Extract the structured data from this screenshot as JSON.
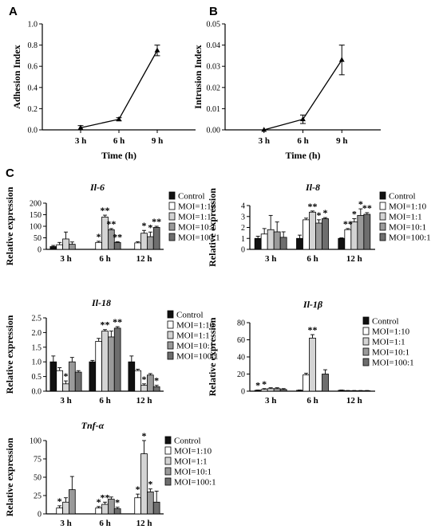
{
  "panel_letters": [
    "A",
    "B",
    "C"
  ],
  "chart_data": [
    {
      "type": "line",
      "panel": "A",
      "x": [
        "3 h",
        "6 h",
        "9 h"
      ],
      "values": [
        0.02,
        0.1,
        0.75
      ],
      "errors": [
        0.02,
        0.015,
        0.05
      ],
      "xlabel": "Time (h)",
      "ylabel": "Adhesion Index",
      "ylim": [
        0,
        1.0
      ],
      "yticks": [
        "0.0",
        "0.2",
        "0.4",
        "0.6",
        "0.8",
        "1.0"
      ]
    },
    {
      "type": "line",
      "panel": "B",
      "x": [
        "3 h",
        "6 h",
        "9 h"
      ],
      "values": [
        0.0,
        0.005,
        0.033
      ],
      "errors": [
        0.0,
        0.002,
        0.007
      ],
      "xlabel": "Time (h)",
      "ylabel": "Intrusion Index",
      "ylim": [
        0,
        0.05
      ],
      "yticks": [
        "0.00",
        "0.01",
        "0.02",
        "0.03",
        "0.04",
        "0.05"
      ]
    },
    {
      "type": "bar",
      "title": "Il-6",
      "categories": [
        "3 h",
        "6 h",
        "12 h"
      ],
      "ylabel": "Relative expression",
      "ylim": [
        0,
        200
      ],
      "yticks": [
        "0",
        "50",
        "100",
        "150",
        "200"
      ],
      "series": [
        {
          "name": "Control",
          "values": [
            12,
            0,
            0
          ],
          "errors": [
            5,
            0,
            0
          ]
        },
        {
          "name": "MOI=1:10",
          "values": [
            20,
            30,
            28
          ],
          "errors": [
            10,
            5,
            5
          ]
        },
        {
          "name": "MOI=1:1",
          "values": [
            45,
            140,
            70
          ],
          "errors": [
            30,
            8,
            12
          ]
        },
        {
          "name": "MOI=10:1",
          "values": [
            22,
            85,
            55
          ],
          "errors": [
            10,
            5,
            20
          ]
        },
        {
          "name": "MOI=100:1",
          "values": [
            0,
            30,
            95
          ],
          "errors": [
            0,
            3,
            5
          ]
        }
      ],
      "significance": [
        {
          "series": 1,
          "category": 1,
          "label": "*"
        },
        {
          "series": 2,
          "category": 1,
          "label": "**"
        },
        {
          "series": 3,
          "category": 1,
          "label": "**"
        },
        {
          "series": 4,
          "category": 1,
          "label": "**"
        },
        {
          "series": 2,
          "category": 2,
          "label": "*"
        },
        {
          "series": 3,
          "category": 2,
          "label": "*"
        },
        {
          "series": 4,
          "category": 2,
          "label": "**"
        }
      ]
    },
    {
      "type": "bar",
      "title": "Il-8",
      "categories": [
        "3 h",
        "6 h",
        "12 h"
      ],
      "ylabel": "Relative expression",
      "ylim": [
        0,
        4
      ],
      "yticks": [
        "0",
        "1",
        "2",
        "3",
        "4"
      ],
      "series": [
        {
          "name": "Control",
          "values": [
            1.0,
            1.0,
            1.0
          ],
          "errors": [
            0.2,
            0.3,
            0.05
          ]
        },
        {
          "name": "MOI=1:10",
          "values": [
            1.4,
            2.7,
            1.8
          ],
          "errors": [
            0.5,
            0.15,
            0.1
          ]
        },
        {
          "name": "MOI=1:1",
          "values": [
            1.8,
            3.4,
            2.5
          ],
          "errors": [
            1.3,
            0.1,
            0.3
          ]
        },
        {
          "name": "MOI=10:1",
          "values": [
            1.6,
            2.4,
            3.1
          ],
          "errors": [
            0.9,
            0.3,
            0.6
          ]
        },
        {
          "name": "MOI=100:1",
          "values": [
            1.1,
            2.8,
            3.2
          ],
          "errors": [
            0.5,
            0.1,
            0.15
          ]
        }
      ],
      "significance": [
        {
          "series": 2,
          "category": 1,
          "label": "**"
        },
        {
          "series": 3,
          "category": 1,
          "label": "*"
        },
        {
          "series": 4,
          "category": 1,
          "label": "*"
        },
        {
          "series": 1,
          "category": 2,
          "label": "**"
        },
        {
          "series": 2,
          "category": 2,
          "label": "*"
        },
        {
          "series": 3,
          "category": 2,
          "label": "*"
        },
        {
          "series": 4,
          "category": 2,
          "label": "**"
        }
      ]
    },
    {
      "type": "bar",
      "title": "Il-18",
      "categories": [
        "3 h",
        "6 h",
        "12 h"
      ],
      "ylabel": "Relative expression",
      "ylim": [
        0,
        2.5
      ],
      "yticks": [
        "0.0",
        "0.5",
        "1.0",
        "1.5",
        "2.0",
        "2.5"
      ],
      "series": [
        {
          "name": "Control",
          "values": [
            1.0,
            1.0,
            1.0
          ],
          "errors": [
            0.2,
            0.05,
            0.2
          ]
        },
        {
          "name": "MOI=1:10",
          "values": [
            0.7,
            1.7,
            0.7
          ],
          "errors": [
            0.1,
            0.1,
            0.05
          ]
        },
        {
          "name": "MOI=1:1",
          "values": [
            0.25,
            2.05,
            0.2
          ],
          "errors": [
            0.1,
            0.05,
            0.05
          ]
        },
        {
          "name": "MOI=10:1",
          "values": [
            1.0,
            1.85,
            0.55
          ],
          "errors": [
            0.15,
            0.2,
            0.05
          ]
        },
        {
          "name": "MOI=100:1",
          "values": [
            0.65,
            2.15,
            0.15
          ],
          "errors": [
            0.05,
            0.05,
            0.05
          ]
        }
      ],
      "significance": [
        {
          "series": 2,
          "category": 0,
          "label": "*"
        },
        {
          "series": 2,
          "category": 1,
          "label": "**"
        },
        {
          "series": 4,
          "category": 1,
          "label": "**"
        },
        {
          "series": 2,
          "category": 2,
          "label": "*"
        },
        {
          "series": 4,
          "category": 2,
          "label": "*"
        }
      ]
    },
    {
      "type": "bar",
      "title": "Il-1β",
      "categories": [
        "3 h",
        "6 h",
        "12 h"
      ],
      "ylabel": "Relative expression",
      "ylim": [
        0,
        80
      ],
      "yticks": [
        "0",
        "20",
        "40",
        "60",
        "80"
      ],
      "series": [
        {
          "name": "Control",
          "values": [
            1,
            1,
            1
          ],
          "errors": [
            0.3,
            0.3,
            0.3
          ]
        },
        {
          "name": "MOI=1:10",
          "values": [
            2,
            19,
            0.5
          ],
          "errors": [
            1,
            2,
            0.3
          ]
        },
        {
          "name": "MOI=1:1",
          "values": [
            3,
            62,
            0.5
          ],
          "errors": [
            1,
            4,
            0.3
          ]
        },
        {
          "name": "MOI=10:1",
          "values": [
            3,
            0,
            0.5
          ],
          "errors": [
            1,
            0,
            0.3
          ]
        },
        {
          "name": "MOI=100:1",
          "values": [
            2,
            20,
            0.5
          ],
          "errors": [
            1,
            5,
            0.3
          ]
        }
      ],
      "significance": [
        {
          "series": 0,
          "category": 0,
          "label": "*"
        },
        {
          "series": 1,
          "category": 0,
          "label": "*"
        },
        {
          "series": 2,
          "category": 1,
          "label": "**"
        }
      ]
    },
    {
      "type": "bar",
      "title": "Tnf-α",
      "categories": [
        "3 h",
        "6 h",
        "12 h"
      ],
      "ylabel": "Relative expression",
      "ylim": [
        0,
        100
      ],
      "yticks": [
        "0",
        "25",
        "50",
        "75",
        "100"
      ],
      "series": [
        {
          "name": "Control",
          "values": [
            0,
            0,
            0
          ],
          "errors": [
            0,
            0,
            0
          ]
        },
        {
          "name": "MOI=1:10",
          "values": [
            8,
            8,
            22
          ],
          "errors": [
            3,
            2,
            5
          ]
        },
        {
          "name": "MOI=1:1",
          "values": [
            16,
            13,
            82
          ],
          "errors": [
            6,
            3,
            18
          ]
        },
        {
          "name": "MOI=10:1",
          "values": [
            33,
            20,
            30
          ],
          "errors": [
            18,
            3,
            4
          ]
        },
        {
          "name": "MOI=100:1",
          "values": [
            0,
            7,
            16
          ],
          "errors": [
            0,
            2,
            15
          ]
        }
      ],
      "significance": [
        {
          "series": 1,
          "category": 0,
          "label": "*"
        },
        {
          "series": 1,
          "category": 1,
          "label": "*"
        },
        {
          "series": 2,
          "category": 1,
          "label": "**"
        },
        {
          "series": 4,
          "category": 1,
          "label": "*"
        },
        {
          "series": 1,
          "category": 2,
          "label": "*"
        },
        {
          "series": 2,
          "category": 2,
          "label": "*"
        },
        {
          "series": 3,
          "category": 2,
          "label": "*"
        }
      ]
    }
  ],
  "series_colors": [
    "#111111",
    "#ffffff",
    "#d4d4d4",
    "#9a9a9a",
    "#6e6e6e"
  ]
}
